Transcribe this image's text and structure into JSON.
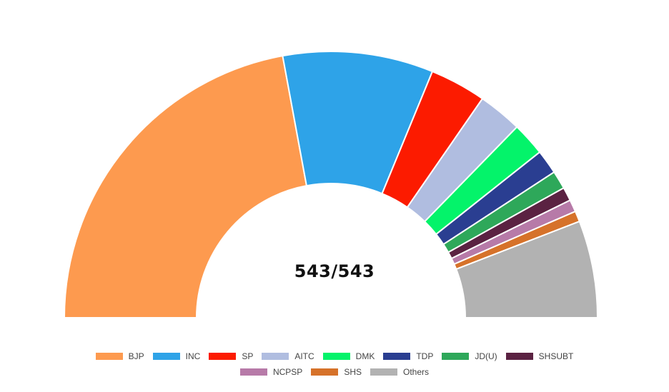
{
  "chart_data": {
    "type": "pie",
    "subtype": "half-donut",
    "center_text": "543/543",
    "series": [
      {
        "name": "BJP",
        "value": 240,
        "color": "#fd9a4f"
      },
      {
        "name": "INC",
        "value": 99,
        "color": "#2ea3e8"
      },
      {
        "name": "SP",
        "value": 37,
        "color": "#fc1b00"
      },
      {
        "name": "AITC",
        "value": 29,
        "color": "#b0bde0"
      },
      {
        "name": "DMK",
        "value": 22,
        "color": "#04f36a"
      },
      {
        "name": "TDP",
        "value": 16,
        "color": "#2a3e91"
      },
      {
        "name": "JD(U)",
        "value": 12,
        "color": "#2ea85a"
      },
      {
        "name": "SHSUBT",
        "value": 9,
        "color": "#5b2242"
      },
      {
        "name": "NCPSP",
        "value": 8,
        "color": "#b77aa8"
      },
      {
        "name": "SHS",
        "value": 7,
        "color": "#d6722a"
      },
      {
        "name": "Others",
        "value": 64,
        "color": "#b2b2b2"
      }
    ],
    "legend_position": "bottom"
  }
}
